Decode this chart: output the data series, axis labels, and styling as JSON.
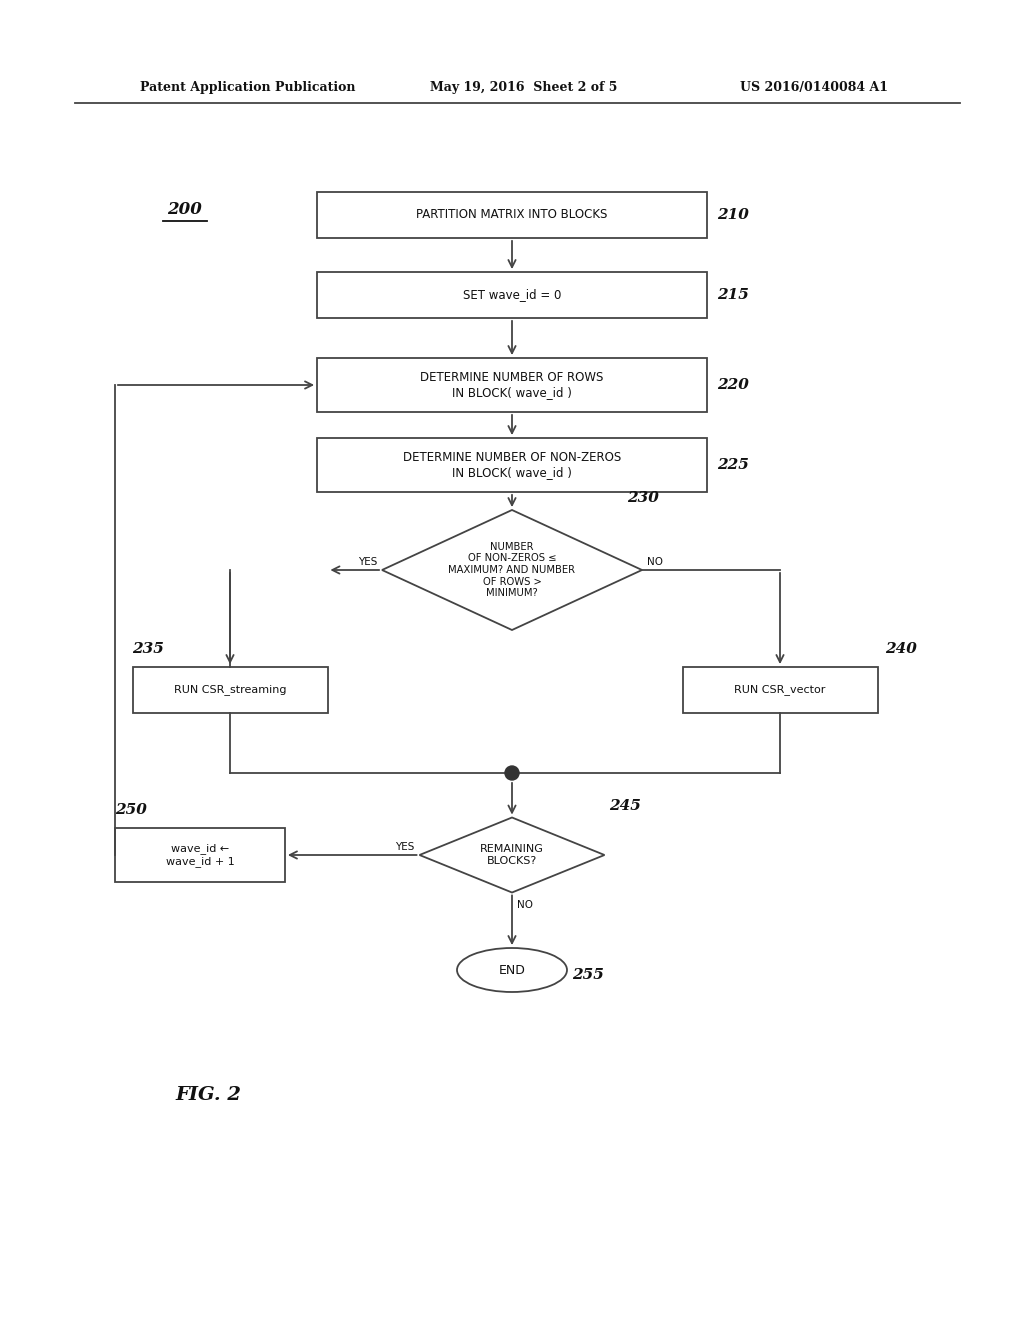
{
  "bg_color": "#ffffff",
  "text_color": "#111111",
  "header_text": "Patent Application Publication",
  "header_date": "May 19, 2016  Sheet 2 of 5",
  "header_patent": "US 2016/0140084 A1",
  "fig_label": "FIG. 2",
  "fig_number": "200",
  "label_210": "210",
  "label_215": "215",
  "label_220": "220",
  "label_225": "225",
  "label_230": "230",
  "label_235": "235",
  "label_240": "240",
  "label_245": "245",
  "label_250": "250",
  "label_255": "255",
  "text_210": "PARTITION MATRIX INTO BLOCKS",
  "text_215": "SET wave_id = 0",
  "text_220": "DETERMINE NUMBER OF ROWS\nIN BLOCK( wave_id )",
  "text_225": "DETERMINE NUMBER OF NON-ZEROS\nIN BLOCK( wave_id )",
  "text_230": "NUMBER\nOF NON-ZEROS ≤\nMAXIMUM? AND NUMBER\nOF ROWS >\nMINIMUM?",
  "text_235": "RUN CSR_streaming",
  "text_240": "RUN CSR_vector",
  "text_245": "REMAINING\nBLOCKS?",
  "text_250": "wave_id ←\nwave_id + 1",
  "text_255": "END",
  "yes_label": "YES",
  "no_label": "NO"
}
